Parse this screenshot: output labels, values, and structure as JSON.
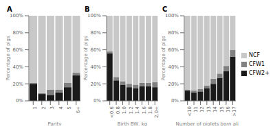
{
  "chart_data": [
    {
      "type": "bar",
      "title": "A",
      "xlabel": "Parity",
      "ylabel": "Percentage of pigs",
      "stacked": true,
      "categories": [
        "1",
        "2",
        "3",
        "4",
        "5",
        "6+"
      ],
      "series": [
        {
          "name": "CFW2+",
          "color": "#1a1a1a",
          "values": [
            20,
            8,
            7,
            10,
            16,
            30
          ]
        },
        {
          "name": "CFW1",
          "color": "#808080",
          "values": [
            1,
            1,
            6,
            3,
            5,
            3
          ]
        },
        {
          "name": "NCF",
          "color": "#c8c8c8",
          "values": [
            79,
            91,
            87,
            87,
            79,
            67
          ]
        }
      ],
      "ylim": [
        0,
        100
      ],
      "yticks": [
        {
          "value": 0,
          "label": "0%"
        },
        {
          "value": 20,
          "label": "20%"
        },
        {
          "value": 40,
          "label": "40%"
        },
        {
          "value": 60,
          "label": "60%"
        },
        {
          "value": 80,
          "label": "80%"
        },
        {
          "value": 100,
          "label": "100%"
        }
      ]
    },
    {
      "type": "bar",
      "title": "B",
      "xlabel": "Birth BW, kg",
      "ylabel": "Percentage of pigs",
      "stacked": true,
      "categories": [
        "<0.6",
        "0.8",
        "1.0",
        "1.2",
        "1.4",
        "1.6",
        "1.8",
        "2.0+"
      ],
      "series": [
        {
          "name": "CFW2+",
          "color": "#1a1a1a",
          "values": [
            56,
            24,
            19,
            16,
            15,
            17,
            17,
            16
          ]
        },
        {
          "name": "CFW1",
          "color": "#808080",
          "values": [
            2,
            4,
            4,
            4,
            4,
            4,
            4,
            6
          ]
        },
        {
          "name": "NCF",
          "color": "#c8c8c8",
          "values": [
            42,
            72,
            77,
            80,
            81,
            79,
            79,
            78
          ]
        }
      ],
      "ylim": [
        0,
        100
      ],
      "yticks": [
        {
          "value": 0,
          "label": "0%"
        },
        {
          "value": 20,
          "label": "20%"
        },
        {
          "value": 40,
          "label": "40%"
        },
        {
          "value": 60,
          "label": "60%"
        },
        {
          "value": 80,
          "label": "80%"
        },
        {
          "value": 100,
          "label": "100%"
        }
      ]
    },
    {
      "type": "bar",
      "title": "C",
      "xlabel": "Number of piglets born alive",
      "ylabel": "Percentage of pigs",
      "stacked": true,
      "legend": "right",
      "categories": [
        "<10",
        "11",
        "12",
        "13",
        "14",
        "15",
        "16",
        ">17"
      ],
      "series": [
        {
          "name": "CFW2+",
          "color": "#1a1a1a",
          "values": [
            12,
            10,
            11,
            15,
            20,
            27,
            35,
            52
          ]
        },
        {
          "name": "CFW1",
          "color": "#808080",
          "values": [
            1,
            2,
            3,
            3,
            6,
            5,
            6,
            8
          ]
        },
        {
          "name": "NCF",
          "color": "#c8c8c8",
          "values": [
            87,
            88,
            86,
            82,
            74,
            68,
            59,
            40
          ]
        }
      ],
      "ylim": [
        0,
        100
      ],
      "yticks": [
        {
          "value": 0,
          "label": "0%"
        },
        {
          "value": 20,
          "label": "20%"
        },
        {
          "value": 40,
          "label": "40%"
        },
        {
          "value": 60,
          "label": "60%"
        },
        {
          "value": 80,
          "label": "80%"
        },
        {
          "value": 100,
          "label": "100%"
        }
      ]
    }
  ]
}
